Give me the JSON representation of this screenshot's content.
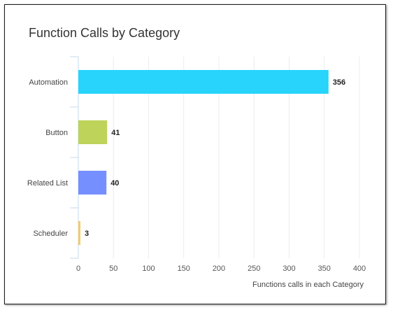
{
  "chart_data": {
    "type": "bar",
    "orientation": "horizontal",
    "title": "Function Calls by Category",
    "xlabel": "Functions calls in each Category",
    "ylabel": "",
    "categories": [
      "Automation",
      "Button",
      "Related List",
      "Scheduler"
    ],
    "values": [
      356,
      41,
      40,
      3
    ],
    "colors": [
      "#28d4fc",
      "#bdd35a",
      "#7590fe",
      "#f5cb6b"
    ],
    "xlim": [
      0,
      400
    ],
    "xticks": [
      0,
      50,
      100,
      150,
      200,
      250,
      300,
      350,
      400
    ],
    "grid": true,
    "legend": "none",
    "data_labels": true
  }
}
